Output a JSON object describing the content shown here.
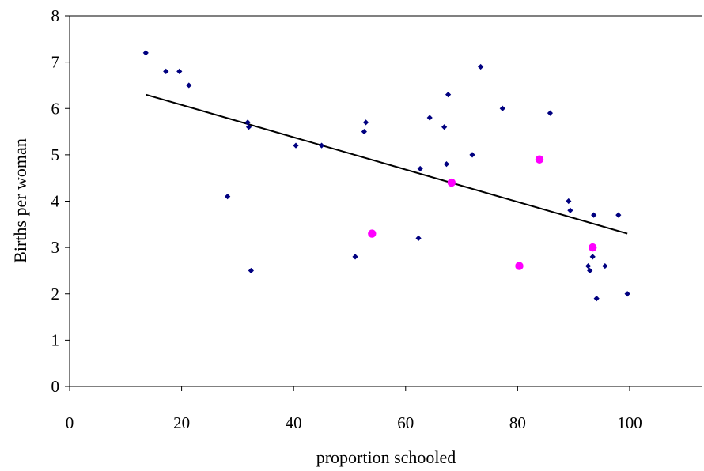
{
  "chart_data": {
    "type": "scatter",
    "title": "",
    "xlabel": "proportion schooled",
    "ylabel": "Births per woman",
    "xlim": [
      0,
      113
    ],
    "ylim": [
      0,
      8
    ],
    "x_ticks": [
      "0",
      "20",
      "40",
      "60",
      "80",
      "100"
    ],
    "y_ticks": [
      "0",
      "1",
      "2",
      "3",
      "4",
      "5",
      "6",
      "7",
      "8"
    ],
    "grid": false,
    "legend": "none",
    "series": [
      {
        "marker": "diamond",
        "color": "#000080",
        "points": [
          [
            13.6,
            7.2
          ],
          [
            17.2,
            6.8
          ],
          [
            19.6,
            6.8
          ],
          [
            21.3,
            6.5
          ],
          [
            28.2,
            4.1
          ],
          [
            31.8,
            5.7
          ],
          [
            32.0,
            5.6
          ],
          [
            32.4,
            2.5
          ],
          [
            40.4,
            5.2
          ],
          [
            45.0,
            5.2
          ],
          [
            51.0,
            2.8
          ],
          [
            52.6,
            5.5
          ],
          [
            52.9,
            5.7
          ],
          [
            62.3,
            3.2
          ],
          [
            62.6,
            4.7
          ],
          [
            64.3,
            5.8
          ],
          [
            66.9,
            5.6
          ],
          [
            67.3,
            4.8
          ],
          [
            67.6,
            6.3
          ],
          [
            71.9,
            5.0
          ],
          [
            73.4,
            6.9
          ],
          [
            77.3,
            6.0
          ],
          [
            85.8,
            5.9
          ],
          [
            89.1,
            4.0
          ],
          [
            89.4,
            3.8
          ],
          [
            92.6,
            2.6
          ],
          [
            92.9,
            2.5
          ],
          [
            93.4,
            2.8
          ],
          [
            93.6,
            3.7
          ],
          [
            94.1,
            1.9
          ],
          [
            95.6,
            2.6
          ],
          [
            98.0,
            3.7
          ],
          [
            99.6,
            2.0
          ]
        ]
      },
      {
        "marker": "circle",
        "color": "#FF00FF",
        "points": [
          [
            54.0,
            3.3
          ],
          [
            68.2,
            4.4
          ],
          [
            80.3,
            2.6
          ],
          [
            83.9,
            4.9
          ],
          [
            93.4,
            3.0
          ]
        ]
      }
    ],
    "trendline": {
      "color": "#000000",
      "x": [
        13.6,
        99.6
      ],
      "y": [
        6.3,
        3.3
      ]
    }
  }
}
